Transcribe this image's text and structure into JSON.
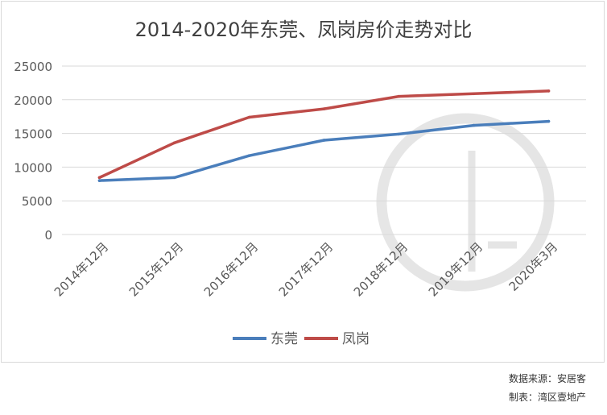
{
  "chart_data": {
    "type": "line",
    "title": "2014-2020年东莞、凤岗房价走势对比",
    "categories": [
      "2014年12月",
      "2015年12月",
      "2016年12月",
      "2017年12月",
      "2018年12月",
      "2019年12月",
      "2020年3月"
    ],
    "series": [
      {
        "name": "东莞",
        "color": "#4a7ebb",
        "values": [
          8000,
          8450,
          11700,
          14000,
          14900,
          16200,
          16800
        ]
      },
      {
        "name": "凤岗",
        "color": "#be4b48",
        "values": [
          8450,
          13600,
          17400,
          18650,
          20500,
          20900,
          21300
        ]
      }
    ],
    "yticks": [
      0,
      5000,
      10000,
      15000,
      20000,
      25000
    ],
    "ylim": [
      0,
      25000
    ],
    "xlabel": "",
    "ylabel": "",
    "grid": true,
    "legend": "bottom"
  },
  "watermark": {
    "text": "湾区壹地产"
  },
  "footer": {
    "source": "数据来源：安居客",
    "maker": "制表：湾区壹地产"
  }
}
